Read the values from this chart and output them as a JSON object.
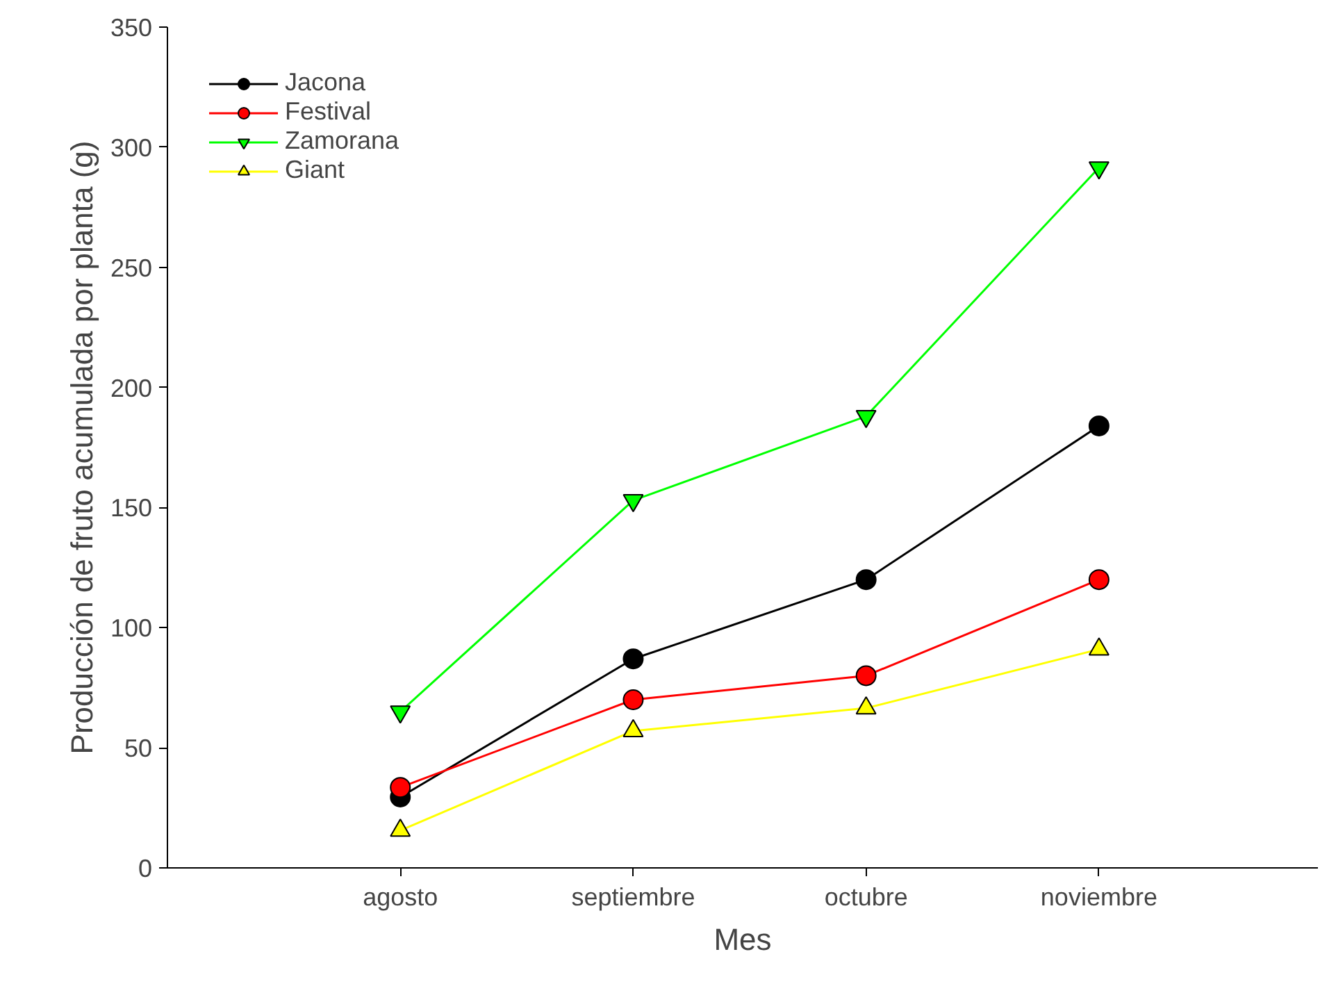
{
  "chart_data": {
    "type": "line",
    "xlabel": "Mes",
    "ylabel": "Producción de fruto acumulada por planta (g)",
    "categories": [
      "agosto",
      "septiembre",
      "octubre",
      "noviembre"
    ],
    "ylim": [
      0,
      350
    ],
    "yticks": [
      0,
      50,
      100,
      150,
      200,
      250,
      300,
      350
    ],
    "grid": false,
    "legend": "top left",
    "series": [
      {
        "name": "Jacona",
        "color": "#000000",
        "marker": "circle",
        "values": [
          29.5,
          87,
          120,
          184
        ]
      },
      {
        "name": "Festival",
        "color": "#ff0000",
        "marker": "circle",
        "values": [
          33.5,
          70,
          80,
          120
        ]
      },
      {
        "name": "Zamorana",
        "color": "#00ff00",
        "marker": "triangle_down",
        "values": [
          65,
          153,
          188,
          291.5
        ]
      },
      {
        "name": "Giant",
        "color": "#ffff00",
        "marker": "triangle",
        "values": [
          15.6,
          57,
          66.5,
          91
        ]
      }
    ]
  }
}
